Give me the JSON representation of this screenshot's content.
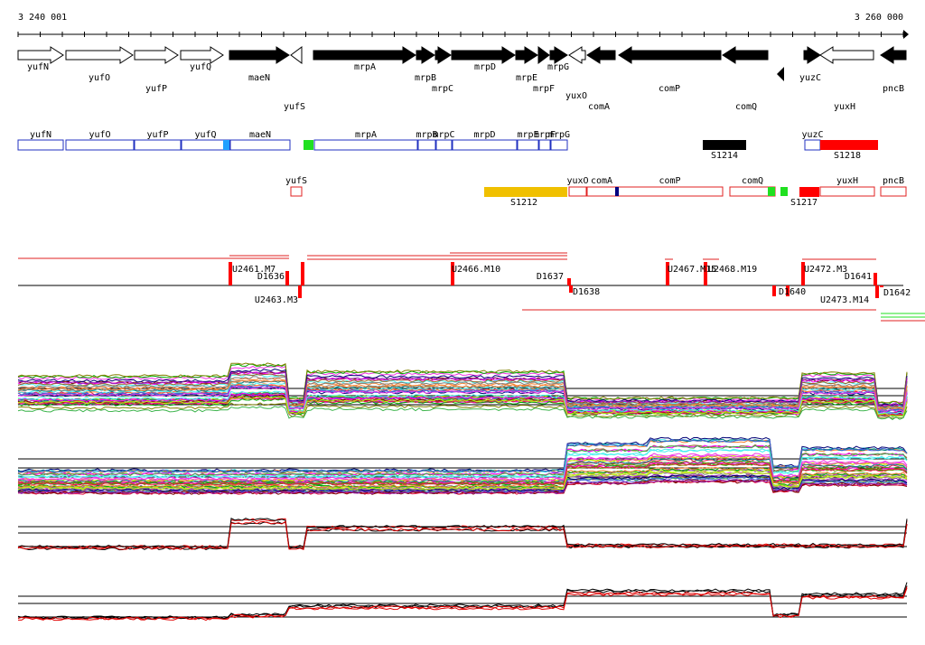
{
  "ruler": {
    "start": "3 240 001",
    "end": "3 260 000"
  },
  "genes": [
    "yufN",
    "yufO",
    "yufP",
    "yufQ",
    "maeN",
    "yufS",
    "mrpA",
    "mrpB",
    "mrpC",
    "mrpD",
    "mrpE",
    "mrpF",
    "mrpG",
    "yuxO",
    "comA",
    "comP",
    "comQ",
    "yuzC",
    "yuxH",
    "pncB"
  ],
  "regions_top": [
    "yufN",
    "yufO",
    "yufP",
    "yufQ",
    "maeN",
    "mrpA",
    "mrpB",
    "mrpC",
    "mrpD",
    "mrpE",
    "mrpF",
    "mrpG",
    "yuzC"
  ],
  "regions_bottom": [
    "yufS",
    "yuxO",
    "comA",
    "comP",
    "comQ",
    "yuxH",
    "pncB"
  ],
  "transcripts": [
    "S1214",
    "S1218",
    "S1212",
    "S1217"
  ],
  "features": [
    "U2461.M7",
    "D1636",
    "U2463.M3",
    "U2466.M10",
    "D1637",
    "D1638",
    "U2467.M15",
    "U2468.M19",
    "U2472.M3",
    "D1641",
    "D1640",
    "D1642",
    "U2473.M14"
  ]
}
